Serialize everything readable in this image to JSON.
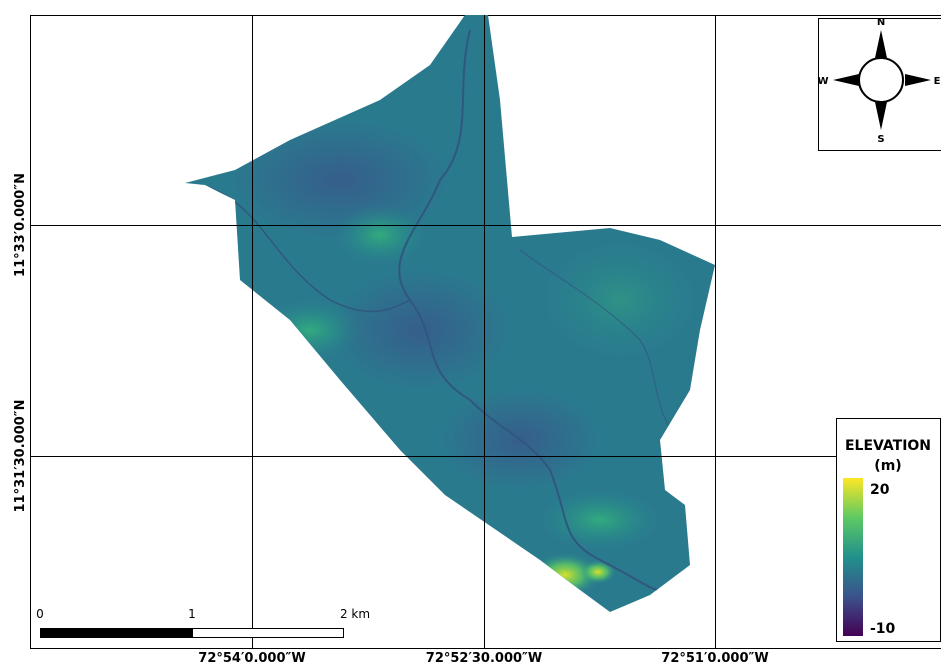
{
  "map": {
    "grid_labels": {
      "x": [
        "72°54′0.000″W",
        "72°52′30.000″W",
        "72°51′0.000″W"
      ],
      "y": [
        "11°33′0.000″N",
        "11°31′30.000″N"
      ]
    },
    "compass": {
      "north": "N",
      "south": "S",
      "east": "E",
      "west": "W"
    },
    "legend": {
      "title": "ELEVATION",
      "unit": "(m)",
      "max": 20,
      "min": -10
    },
    "scale_bar": {
      "labels": [
        "0",
        "1",
        "2 km"
      ]
    }
  }
}
